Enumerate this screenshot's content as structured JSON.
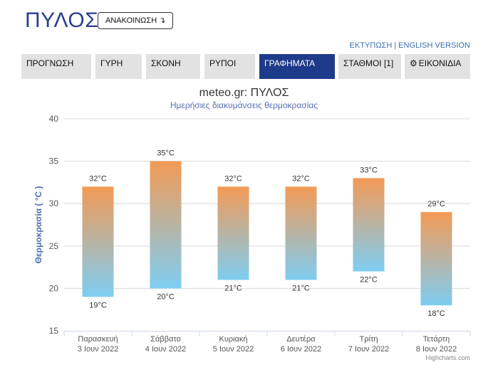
{
  "header": {
    "city": "ΠΥΛΟΣ",
    "announce_label": "ΑΝΑΚΟΙΝΩΣΗ ↴",
    "print_link": "ΕΚΤΥΠΩΣΗ",
    "separator": "|",
    "english_link": "ENGLISH VERSION"
  },
  "tabs": [
    {
      "label": "ΠΡΟΓΝΩΣΗ",
      "active": false
    },
    {
      "label": "ΓΥΡΗ",
      "active": false
    },
    {
      "label": "ΣΚΟΝΗ",
      "active": false
    },
    {
      "label": "ΡΥΠΟΙ",
      "active": false
    },
    {
      "label": "ΓΡΑΦΗΜΑΤΑ",
      "active": true
    },
    {
      "label": "ΣΤΑΘΜΟΙ [1]",
      "active": false
    },
    {
      "label": "ΕΙΚΟΝΙΔΙΑ",
      "active": false,
      "icon": "gear-icon"
    }
  ],
  "chart_data": {
    "type": "columnrange",
    "title": "meteo.gr: ΠΥΛΟΣ",
    "subtitle": "Ημερήσιες διακυμάνσεις θερμοκρασίας",
    "ylabel": "Θερμοκρασία ( °C )",
    "ylim": [
      15,
      40
    ],
    "yticks": [
      15,
      20,
      25,
      30,
      35,
      40
    ],
    "grid": true,
    "unit": "°C",
    "categories": [
      [
        "Παρασκευή",
        "3 Ιουν 2022"
      ],
      [
        "Σάββατο",
        "4 Ιουν 2022"
      ],
      [
        "Κυριακή",
        "5 Ιουν 2022"
      ],
      [
        "Δευτέρα",
        "6 Ιουν 2022"
      ],
      [
        "Τρίτη",
        "7 Ιουν 2022"
      ],
      [
        "Τετάρτη",
        "8 Ιουν 2022"
      ]
    ],
    "low": [
      19,
      20,
      21,
      21,
      22,
      18
    ],
    "high": [
      32,
      35,
      32,
      32,
      33,
      29
    ],
    "colors": {
      "top": "#f39a55",
      "bottom": "#7ecdf2"
    }
  },
  "credits": "Highcharts.com"
}
